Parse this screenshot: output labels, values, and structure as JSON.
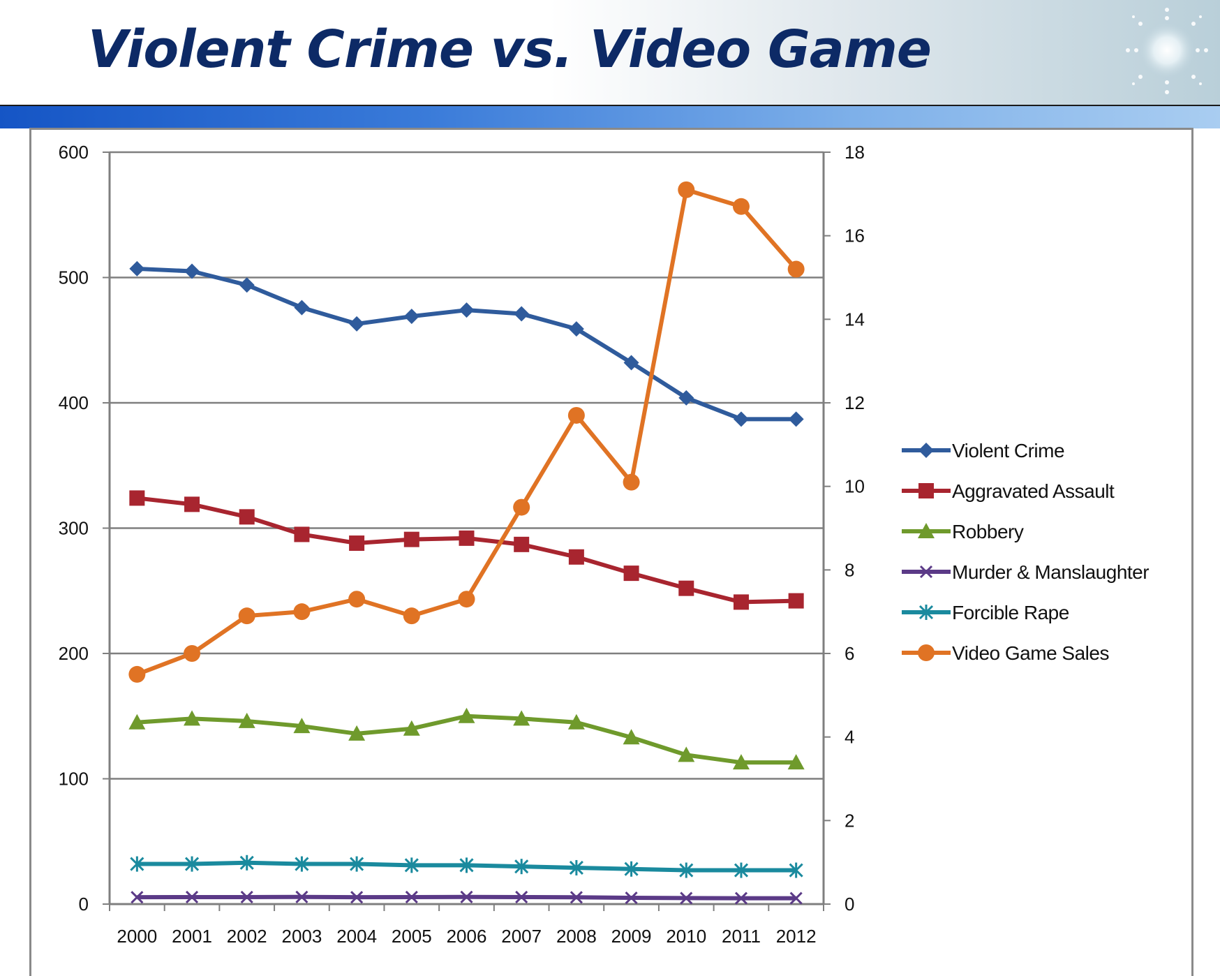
{
  "page": {
    "title": "Violent Crime vs. Video Game"
  },
  "chart_data": {
    "type": "line",
    "title": "Violent Crime vs. Video Game",
    "categories": [
      "2000",
      "2001",
      "2002",
      "2003",
      "2004",
      "2005",
      "2006",
      "2007",
      "2008",
      "2009",
      "2010",
      "2011",
      "2012"
    ],
    "y_left": {
      "min": 0,
      "max": 600,
      "ticks": [
        0,
        100,
        200,
        300,
        400,
        500,
        600
      ]
    },
    "y_right": {
      "min": 0,
      "max": 18,
      "ticks": [
        0,
        2,
        4,
        6,
        8,
        10,
        12,
        14,
        16,
        18
      ]
    },
    "grid": true,
    "legend_position": "right",
    "series": [
      {
        "name": "Violent Crime",
        "axis": "left",
        "color": "#2f5b9c",
        "marker": "diamond",
        "values": [
          507,
          505,
          494,
          476,
          463,
          469,
          474,
          471,
          459,
          432,
          404,
          387,
          387
        ]
      },
      {
        "name": "Aggravated Assault",
        "axis": "left",
        "color": "#a8252f",
        "marker": "square",
        "values": [
          324,
          319,
          309,
          295,
          288,
          291,
          292,
          287,
          277,
          264,
          252,
          241,
          242
        ]
      },
      {
        "name": "Robbery",
        "axis": "left",
        "color": "#6f9a2c",
        "marker": "triangle",
        "values": [
          145,
          148,
          146,
          142,
          136,
          140,
          150,
          148,
          145,
          133,
          119,
          113,
          113
        ]
      },
      {
        "name": "Murder & Manslaughter",
        "axis": "left",
        "color": "#5b3a87",
        "marker": "x",
        "values": [
          5.5,
          5.6,
          5.6,
          5.7,
          5.5,
          5.6,
          5.7,
          5.6,
          5.4,
          5.0,
          4.8,
          4.7,
          4.7
        ]
      },
      {
        "name": "Forcible Rape",
        "axis": "left",
        "color": "#1a8a9e",
        "marker": "star",
        "values": [
          32,
          32,
          33,
          32,
          32,
          31,
          31,
          30,
          29,
          28,
          27,
          27,
          27
        ]
      },
      {
        "name": "Video Game Sales",
        "axis": "right",
        "color": "#e07324",
        "marker": "circle",
        "values": [
          5.5,
          6.0,
          6.9,
          7.0,
          7.3,
          6.9,
          7.3,
          9.5,
          11.7,
          10.1,
          17.1,
          16.7,
          15.2
        ]
      }
    ]
  }
}
